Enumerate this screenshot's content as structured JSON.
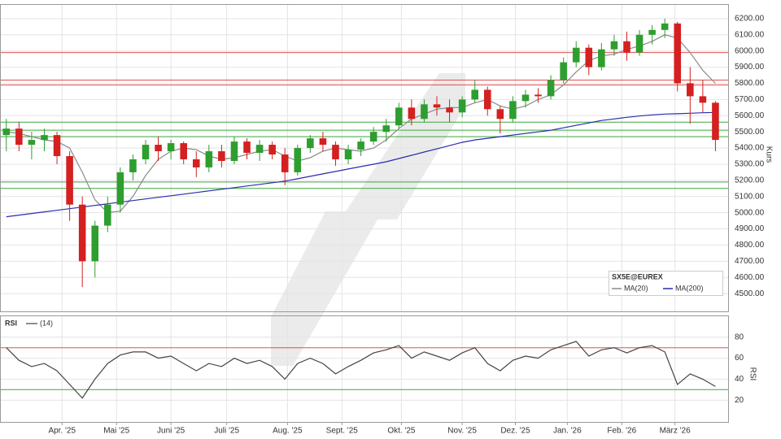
{
  "chart_data": [
    {
      "type": "candlestick",
      "ylabel": "Kurs",
      "legend_title": "SX5E@EUREX",
      "up_color": "#2e9e2e",
      "down_color": "#d42020",
      "grid": true,
      "x": [
        0,
        1,
        2,
        3,
        4,
        5,
        6,
        7,
        8,
        9,
        10,
        11,
        12,
        13,
        14,
        15,
        16,
        17,
        18,
        19,
        20,
        21,
        22,
        23,
        24,
        25,
        26,
        27,
        28,
        29,
        30,
        31,
        32,
        33,
        34,
        35,
        36,
        37,
        38,
        39,
        40,
        41,
        42,
        43,
        44,
        45,
        46,
        47,
        48,
        49,
        50,
        51,
        52,
        53,
        54,
        55,
        56
      ],
      "xlim": [
        -0.5,
        57
      ],
      "open": [
        5480,
        5520,
        5420,
        5450,
        5480,
        5350,
        5050,
        4700,
        4920,
        5050,
        5250,
        5330,
        5420,
        5380,
        5430,
        5330,
        5280,
        5380,
        5320,
        5440,
        5370,
        5420,
        5360,
        5250,
        5400,
        5460,
        5420,
        5330,
        5390,
        5440,
        5500,
        5540,
        5650,
        5580,
        5670,
        5650,
        5620,
        5700,
        5760,
        5640,
        5580,
        5690,
        5730,
        5720,
        5820,
        5930,
        6020,
        5900,
        6010,
        6060,
        5990,
        6100,
        6130,
        6170,
        5800,
        5720,
        5680
      ],
      "high": [
        5580,
        5560,
        5500,
        5520,
        5500,
        5380,
        5100,
        4950,
        5100,
        5280,
        5360,
        5450,
        5470,
        5450,
        5440,
        5380,
        5420,
        5420,
        5470,
        5460,
        5450,
        5440,
        5400,
        5420,
        5480,
        5500,
        5440,
        5420,
        5460,
        5530,
        5580,
        5680,
        5700,
        5700,
        5720,
        5700,
        5720,
        5820,
        5780,
        5660,
        5720,
        5760,
        5770,
        5850,
        5960,
        6060,
        6040,
        6050,
        6100,
        6120,
        6130,
        6160,
        6200,
        6180,
        5900,
        5820,
        5690
      ],
      "low": [
        5380,
        5380,
        5330,
        5380,
        5300,
        4950,
        4540,
        4600,
        4880,
        5000,
        5200,
        5300,
        5320,
        5330,
        5300,
        5220,
        5250,
        5280,
        5300,
        5330,
        5320,
        5330,
        5170,
        5230,
        5370,
        5380,
        5290,
        5300,
        5350,
        5420,
        5440,
        5520,
        5540,
        5560,
        5600,
        5560,
        5590,
        5680,
        5600,
        5490,
        5560,
        5650,
        5680,
        5700,
        5800,
        5900,
        5850,
        5880,
        5970,
        5940,
        5970,
        6040,
        6080,
        5750,
        5550,
        5620,
        5380
      ],
      "close": [
        5520,
        5420,
        5450,
        5480,
        5350,
        5050,
        4700,
        4920,
        5050,
        5250,
        5330,
        5420,
        5380,
        5430,
        5330,
        5280,
        5380,
        5320,
        5440,
        5370,
        5420,
        5360,
        5250,
        5400,
        5460,
        5420,
        5330,
        5390,
        5440,
        5500,
        5540,
        5650,
        5580,
        5670,
        5650,
        5620,
        5700,
        5760,
        5640,
        5580,
        5690,
        5730,
        5720,
        5820,
        5930,
        6020,
        5900,
        6010,
        6060,
        5990,
        6100,
        6130,
        6170,
        5800,
        5720,
        5680,
        5450
      ],
      "series": [
        {
          "name": "MA(20)",
          "color": "#8a8a8a",
          "values": [
            5500,
            5490,
            5470,
            5450,
            5440,
            5400,
            5250,
            5080,
            5000,
            5010,
            5100,
            5230,
            5330,
            5380,
            5400,
            5390,
            5350,
            5330,
            5340,
            5360,
            5380,
            5390,
            5350,
            5320,
            5340,
            5380,
            5400,
            5390,
            5380,
            5400,
            5450,
            5520,
            5580,
            5610,
            5640,
            5650,
            5650,
            5680,
            5700,
            5660,
            5640,
            5660,
            5700,
            5730,
            5790,
            5870,
            5940,
            5970,
            5980,
            6010,
            6030,
            6060,
            6100,
            6080,
            5990,
            5880,
            5800
          ]
        },
        {
          "name": "MA(200)",
          "color": "#2b2bb0",
          "values": [
            4975,
            4985,
            4995,
            5005,
            5015,
            5025,
            5035,
            5045,
            5055,
            5065,
            5075,
            5085,
            5095,
            5105,
            5115,
            5125,
            5135,
            5145,
            5155,
            5165,
            5175,
            5185,
            5195,
            5210,
            5225,
            5240,
            5255,
            5270,
            5285,
            5300,
            5315,
            5335,
            5355,
            5375,
            5395,
            5415,
            5435,
            5450,
            5460,
            5470,
            5480,
            5490,
            5500,
            5510,
            5525,
            5540,
            5555,
            5570,
            5580,
            5590,
            5598,
            5605,
            5610,
            5612,
            5615,
            5618,
            5620
          ]
        }
      ],
      "levels": [
        {
          "value": 5990,
          "color": "#e05050"
        },
        {
          "value": 5820,
          "color": "#e05050"
        },
        {
          "value": 5790,
          "color": "#e05050"
        },
        {
          "value": 5560,
          "color": "#3aa83a"
        },
        {
          "value": 5510,
          "color": "#3aa83a"
        },
        {
          "value": 5470,
          "color": "#3aa83a"
        },
        {
          "value": 5190,
          "color": "#3aa83a"
        },
        {
          "value": 5150,
          "color": "#3aa83a"
        }
      ],
      "ylim": [
        4390,
        6290
      ],
      "yticks": [
        {
          "value": 4500,
          "label": "4500.00"
        },
        {
          "value": 4600,
          "label": "4600.00"
        },
        {
          "value": 4700,
          "label": "4700.00"
        },
        {
          "value": 4800,
          "label": "4800.00"
        },
        {
          "value": 4900,
          "label": "4900.00"
        },
        {
          "value": 5000,
          "label": "5000.00"
        },
        {
          "value": 5100,
          "label": "5100.00"
        },
        {
          "value": 5200,
          "label": "5200.00"
        },
        {
          "value": 5300,
          "label": "5300.00"
        },
        {
          "value": 5400,
          "label": "5400.00"
        },
        {
          "value": 5500,
          "label": "5500.00"
        },
        {
          "value": 5600,
          "label": "5600.00"
        },
        {
          "value": 5700,
          "label": "5700.00"
        },
        {
          "value": 5800,
          "label": "5800.00"
        },
        {
          "value": 5900,
          "label": "5900.00"
        },
        {
          "value": 6000,
          "label": "6000.00"
        },
        {
          "value": 6100,
          "label": "6100.00"
        },
        {
          "value": 6200,
          "label": "6200.00"
        }
      ]
    },
    {
      "type": "line",
      "title": "RSI",
      "ylabel": "RSI",
      "grid": true,
      "series": [
        {
          "name": "(14)",
          "color": "#444444",
          "values": [
            70,
            58,
            52,
            55,
            48,
            35,
            22,
            40,
            55,
            63,
            66,
            66,
            60,
            62,
            55,
            48,
            55,
            52,
            60,
            55,
            58,
            52,
            40,
            55,
            60,
            55,
            45,
            52,
            58,
            65,
            68,
            72,
            60,
            66,
            62,
            58,
            65,
            70,
            55,
            48,
            58,
            62,
            60,
            68,
            72,
            76,
            62,
            68,
            70,
            65,
            70,
            72,
            66,
            35,
            45,
            40,
            33
          ]
        }
      ],
      "levels": [
        {
          "value": 70,
          "color": "#e05050"
        },
        {
          "value": 30,
          "color": "#3aa83a"
        }
      ],
      "ylim": [
        0,
        100
      ],
      "yticks": [
        20,
        40,
        60,
        80
      ],
      "xticks": [
        {
          "value": 4.4,
          "label": "Apr. '25"
        },
        {
          "value": 8.7,
          "label": "Mai '25"
        },
        {
          "value": 13,
          "label": "Juni '25"
        },
        {
          "value": 17.4,
          "label": "Juli '25"
        },
        {
          "value": 22.2,
          "label": "Aug. '25"
        },
        {
          "value": 26.5,
          "label": "Sept. '25"
        },
        {
          "value": 31.2,
          "label": "Okt. '25"
        },
        {
          "value": 36,
          "label": "Nov. '25"
        },
        {
          "value": 40.2,
          "label": "Dez. '25"
        },
        {
          "value": 44.3,
          "label": "Jan. '26"
        },
        {
          "value": 48.6,
          "label": "Feb. '26"
        },
        {
          "value": 52.8,
          "label": "März '26"
        }
      ]
    }
  ]
}
